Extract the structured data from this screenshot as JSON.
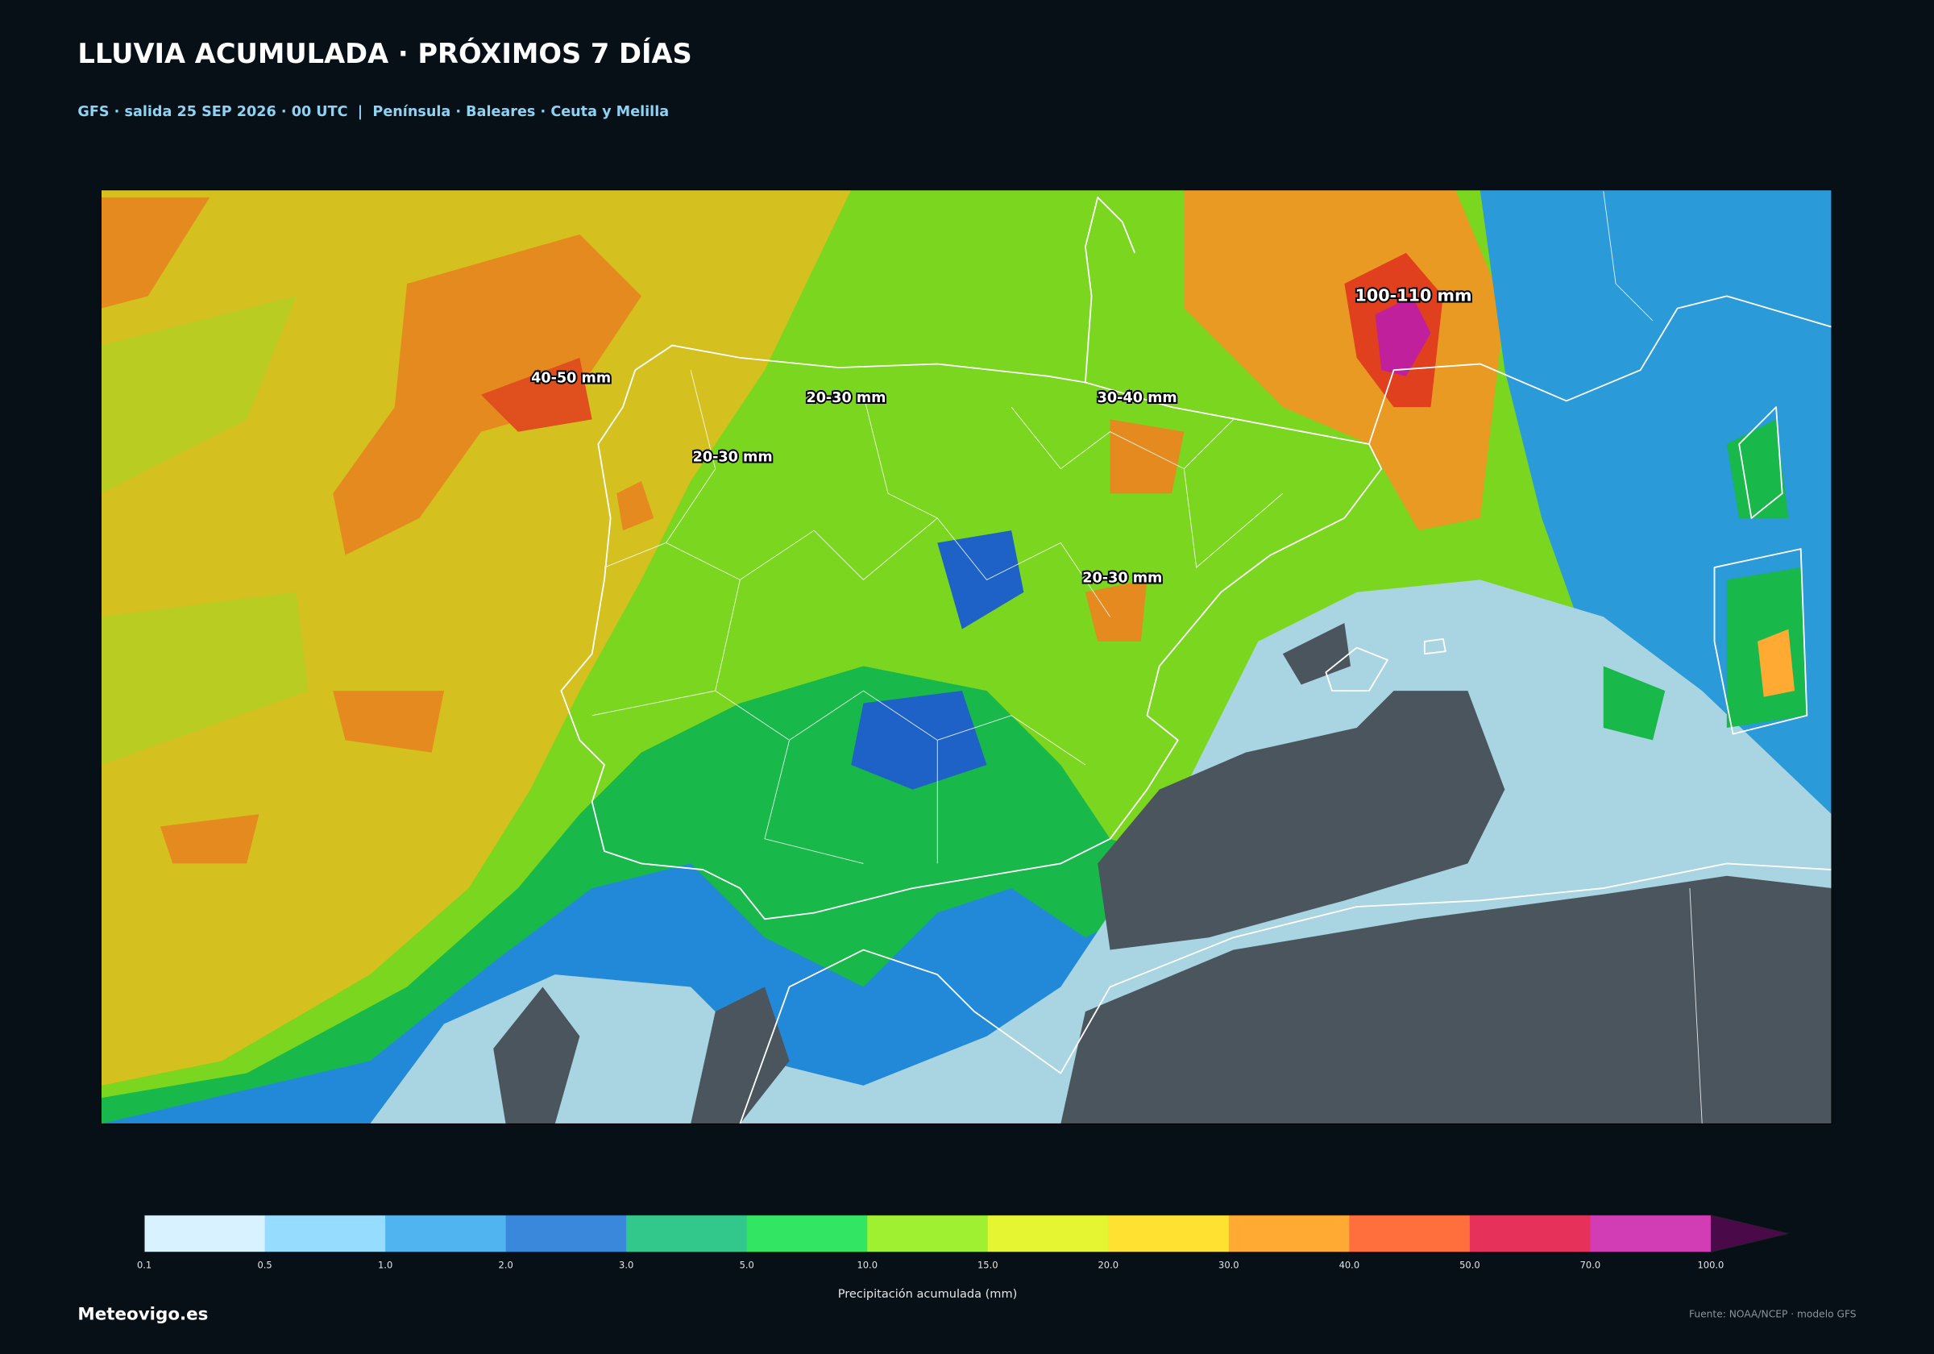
{
  "header": {
    "title": "LLUVIA ACUMULADA · PRÓXIMOS 7 DÍAS",
    "subtitle": "GFS · salida 25 SEP 2026 · 00 UTC  |  Península · Baleares · Ceuta y Melilla"
  },
  "map": {
    "annotations": [
      "40-50 mm",
      "20-30 mm",
      "20-30 mm",
      "30-40 mm",
      "20-30 mm",
      "100-110 mm"
    ]
  },
  "colorbar": {
    "ticks": [
      "0.1",
      "0.5",
      "1.0",
      "2.0",
      "3.0",
      "5.0",
      "10.0",
      "15.0",
      "20.0",
      "30.0",
      "40.0",
      "50.0",
      "70.0",
      "100.0"
    ],
    "colors": [
      "#d8f2ff",
      "#96dcff",
      "#50b4f0",
      "#3a88dc",
      "#32c88c",
      "#32e664",
      "#a0f032",
      "#e6f532",
      "#ffe132",
      "#ffaa32",
      "#ff6e3c",
      "#e6325a",
      "#d23cb4"
    ],
    "extend_color": "#4a0a4a",
    "label": "Precipitación acumulada (mm)"
  },
  "footer": {
    "brand": "Meteovigo.es",
    "source": "Fuente: NOAA/NCEP · modelo GFS"
  }
}
